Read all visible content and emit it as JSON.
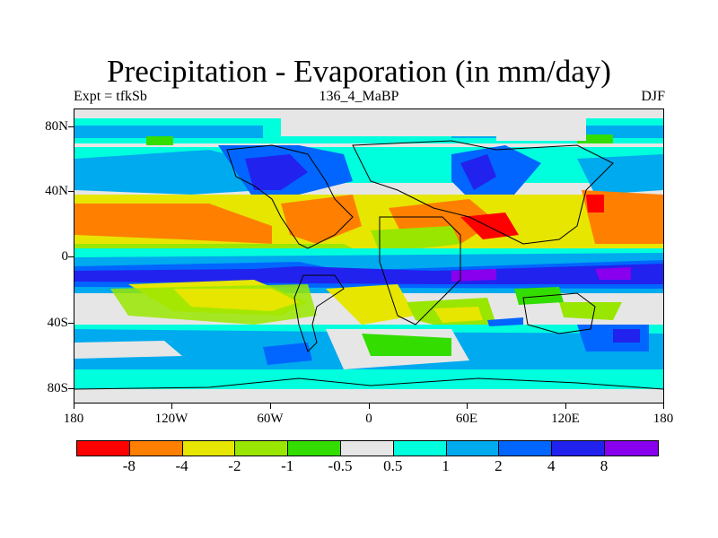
{
  "title": "Precipitation - Evaporation (in mm/day)",
  "subtitle_left": "Expt = tfkSb",
  "subtitle_center": "136_4_MaBP",
  "subtitle_right": "DJF",
  "y_axis": {
    "labels": [
      "80N",
      "40N",
      "0",
      "40S",
      "80S"
    ]
  },
  "x_axis": {
    "labels": [
      "180",
      "120W",
      "60W",
      "0",
      "60E",
      "120E",
      "180"
    ]
  },
  "colors": {
    "neg8": "#ff0000",
    "neg4": "#ff8000",
    "neg2": "#e6e600",
    "neg1": "#99e600",
    "neg05": "#33dd00",
    "near0": "#e6e6e6",
    "pos05": "#00ffdd",
    "pos1": "#00aaee",
    "pos2": "#0066ff",
    "pos4": "#2222ee",
    "pos8": "#8800ee"
  },
  "colorbar": {
    "colors": [
      "#ff0000",
      "#ff8000",
      "#e6e600",
      "#99e600",
      "#33dd00",
      "#e6e6e6",
      "#00ffdd",
      "#00aaee",
      "#0066ff",
      "#2222ee",
      "#8800ee"
    ],
    "labels": [
      "-8",
      "-4",
      "-2",
      "-1",
      "-0.5",
      "0.5",
      "1",
      "2",
      "4",
      "8"
    ]
  }
}
